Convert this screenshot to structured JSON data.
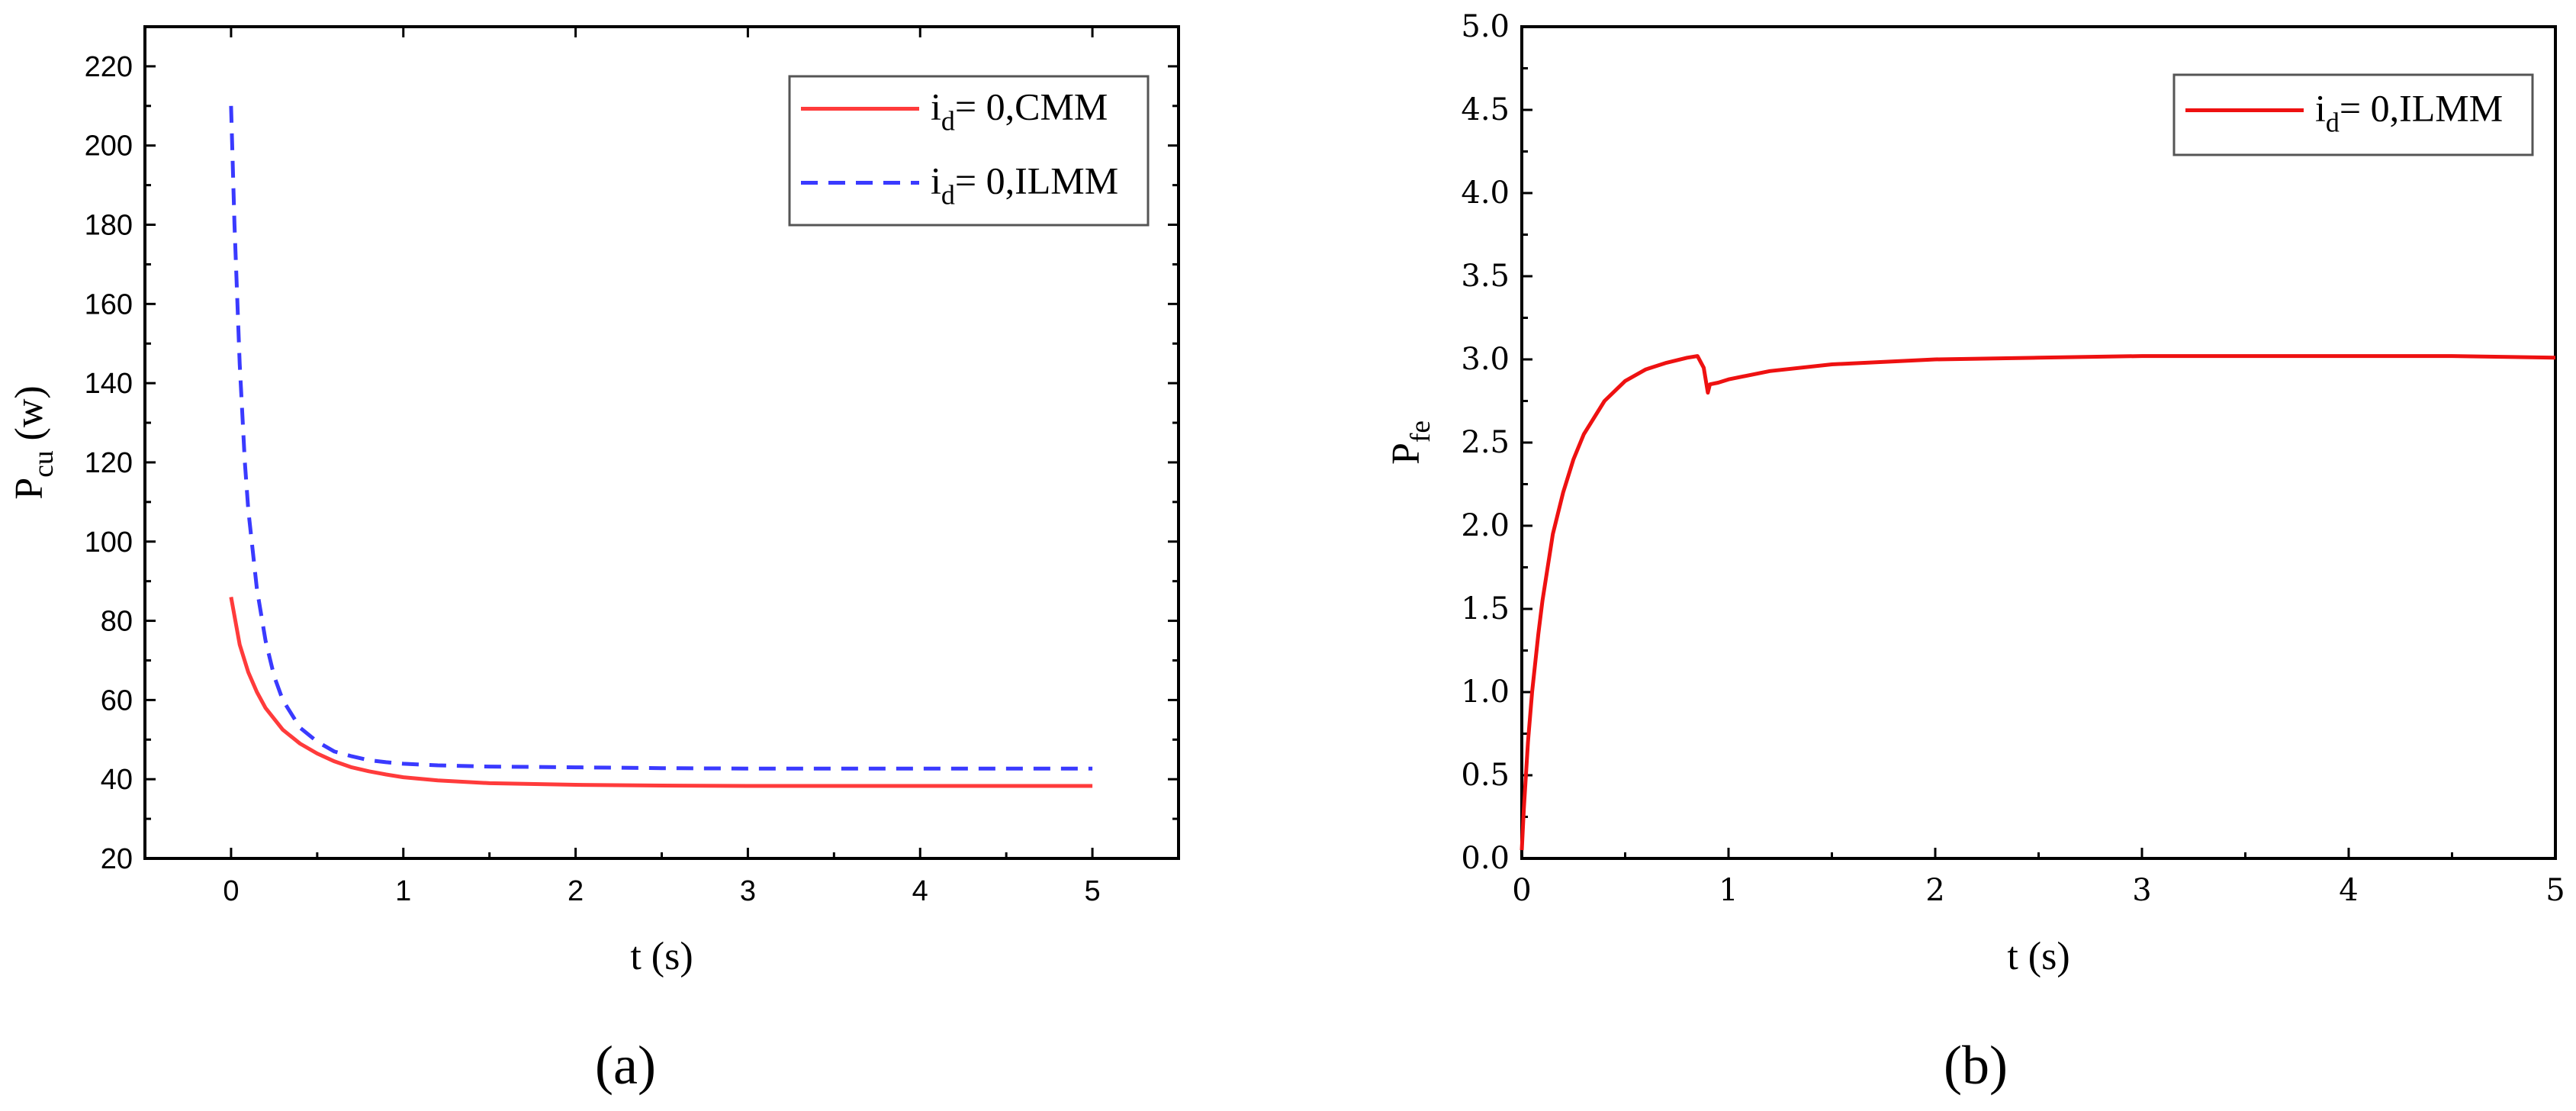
{
  "panel_labels": [
    "(a)",
    "(b)"
  ],
  "chart_data": [
    {
      "type": "line",
      "panel": "(a)",
      "xlabel": "t (s)",
      "ylabel": {
        "base": "P",
        "sub": "cu",
        "rest": " (w)"
      },
      "xlim": [
        -0.5,
        5.5
      ],
      "ylim": [
        20,
        230
      ],
      "xticks": [
        0,
        1,
        2,
        3,
        4,
        5
      ],
      "yticks": [
        20,
        40,
        60,
        80,
        100,
        120,
        140,
        160,
        180,
        200,
        220
      ],
      "legend_position": "top-right",
      "series": [
        {
          "name": {
            "base": "i",
            "sub": "d",
            "rest": "= 0,CMM"
          },
          "color": "#ff3b3b",
          "dash": "solid",
          "x": [
            0,
            0.05,
            0.1,
            0.15,
            0.2,
            0.3,
            0.4,
            0.5,
            0.6,
            0.7,
            0.8,
            0.9,
            1.0,
            1.2,
            1.5,
            2.0,
            2.5,
            3.0,
            3.5,
            4.0,
            4.5,
            5.0
          ],
          "y": [
            86,
            74,
            67,
            62,
            58,
            52.5,
            49,
            46.5,
            44.5,
            43,
            42,
            41.2,
            40.5,
            39.7,
            39,
            38.6,
            38.4,
            38.3,
            38.3,
            38.3,
            38.3,
            38.3
          ]
        },
        {
          "name": {
            "base": "i",
            "sub": "d",
            "rest": "= 0,ILMM"
          },
          "color": "#3a3aff",
          "dash": "dashed",
          "x": [
            0,
            0.02,
            0.05,
            0.08,
            0.1,
            0.15,
            0.2,
            0.25,
            0.3,
            0.4,
            0.5,
            0.6,
            0.7,
            0.8,
            0.9,
            1.0,
            1.2,
            1.5,
            2.0,
            2.5,
            3.0,
            3.5,
            4.0,
            4.5,
            5.0
          ],
          "y": [
            210,
            180,
            145,
            120,
            108,
            88,
            75,
            66,
            60,
            53,
            49.5,
            47,
            45.8,
            44.8,
            44.3,
            43.9,
            43.5,
            43.2,
            43,
            42.8,
            42.7,
            42.7,
            42.7,
            42.7,
            42.7
          ]
        }
      ]
    },
    {
      "type": "line",
      "panel": "(b)",
      "xlabel": "t (s)",
      "ylabel": {
        "base": "P",
        "sub": "fe"
      },
      "xlim": [
        0,
        5
      ],
      "ylim": [
        0,
        5
      ],
      "xticks": [
        0,
        1,
        2,
        3,
        4,
        5
      ],
      "yticks": [
        "0.0",
        "0.5",
        "1.0",
        "1.5",
        "2.0",
        "2.5",
        "3.0",
        "3.5",
        "4.0",
        "4.5",
        "5.0"
      ],
      "legend_position": "top-right",
      "series": [
        {
          "name": {
            "base": "i",
            "sub": "d",
            "rest": "= 0,ILMM"
          },
          "color": "#ee1111",
          "dash": "solid",
          "x": [
            0,
            0.01,
            0.03,
            0.05,
            0.08,
            0.1,
            0.15,
            0.2,
            0.25,
            0.3,
            0.4,
            0.5,
            0.6,
            0.7,
            0.8,
            0.85,
            0.88,
            0.9,
            0.91,
            0.95,
            1.0,
            1.2,
            1.5,
            2.0,
            2.5,
            3.0,
            3.5,
            4.0,
            4.5,
            5.0
          ],
          "y": [
            0.05,
            0.3,
            0.7,
            1.0,
            1.35,
            1.55,
            1.95,
            2.2,
            2.4,
            2.55,
            2.75,
            2.87,
            2.94,
            2.98,
            3.01,
            3.02,
            2.95,
            2.8,
            2.85,
            2.86,
            2.88,
            2.93,
            2.97,
            3.0,
            3.01,
            3.02,
            3.02,
            3.02,
            3.02,
            3.01
          ]
        }
      ]
    }
  ]
}
